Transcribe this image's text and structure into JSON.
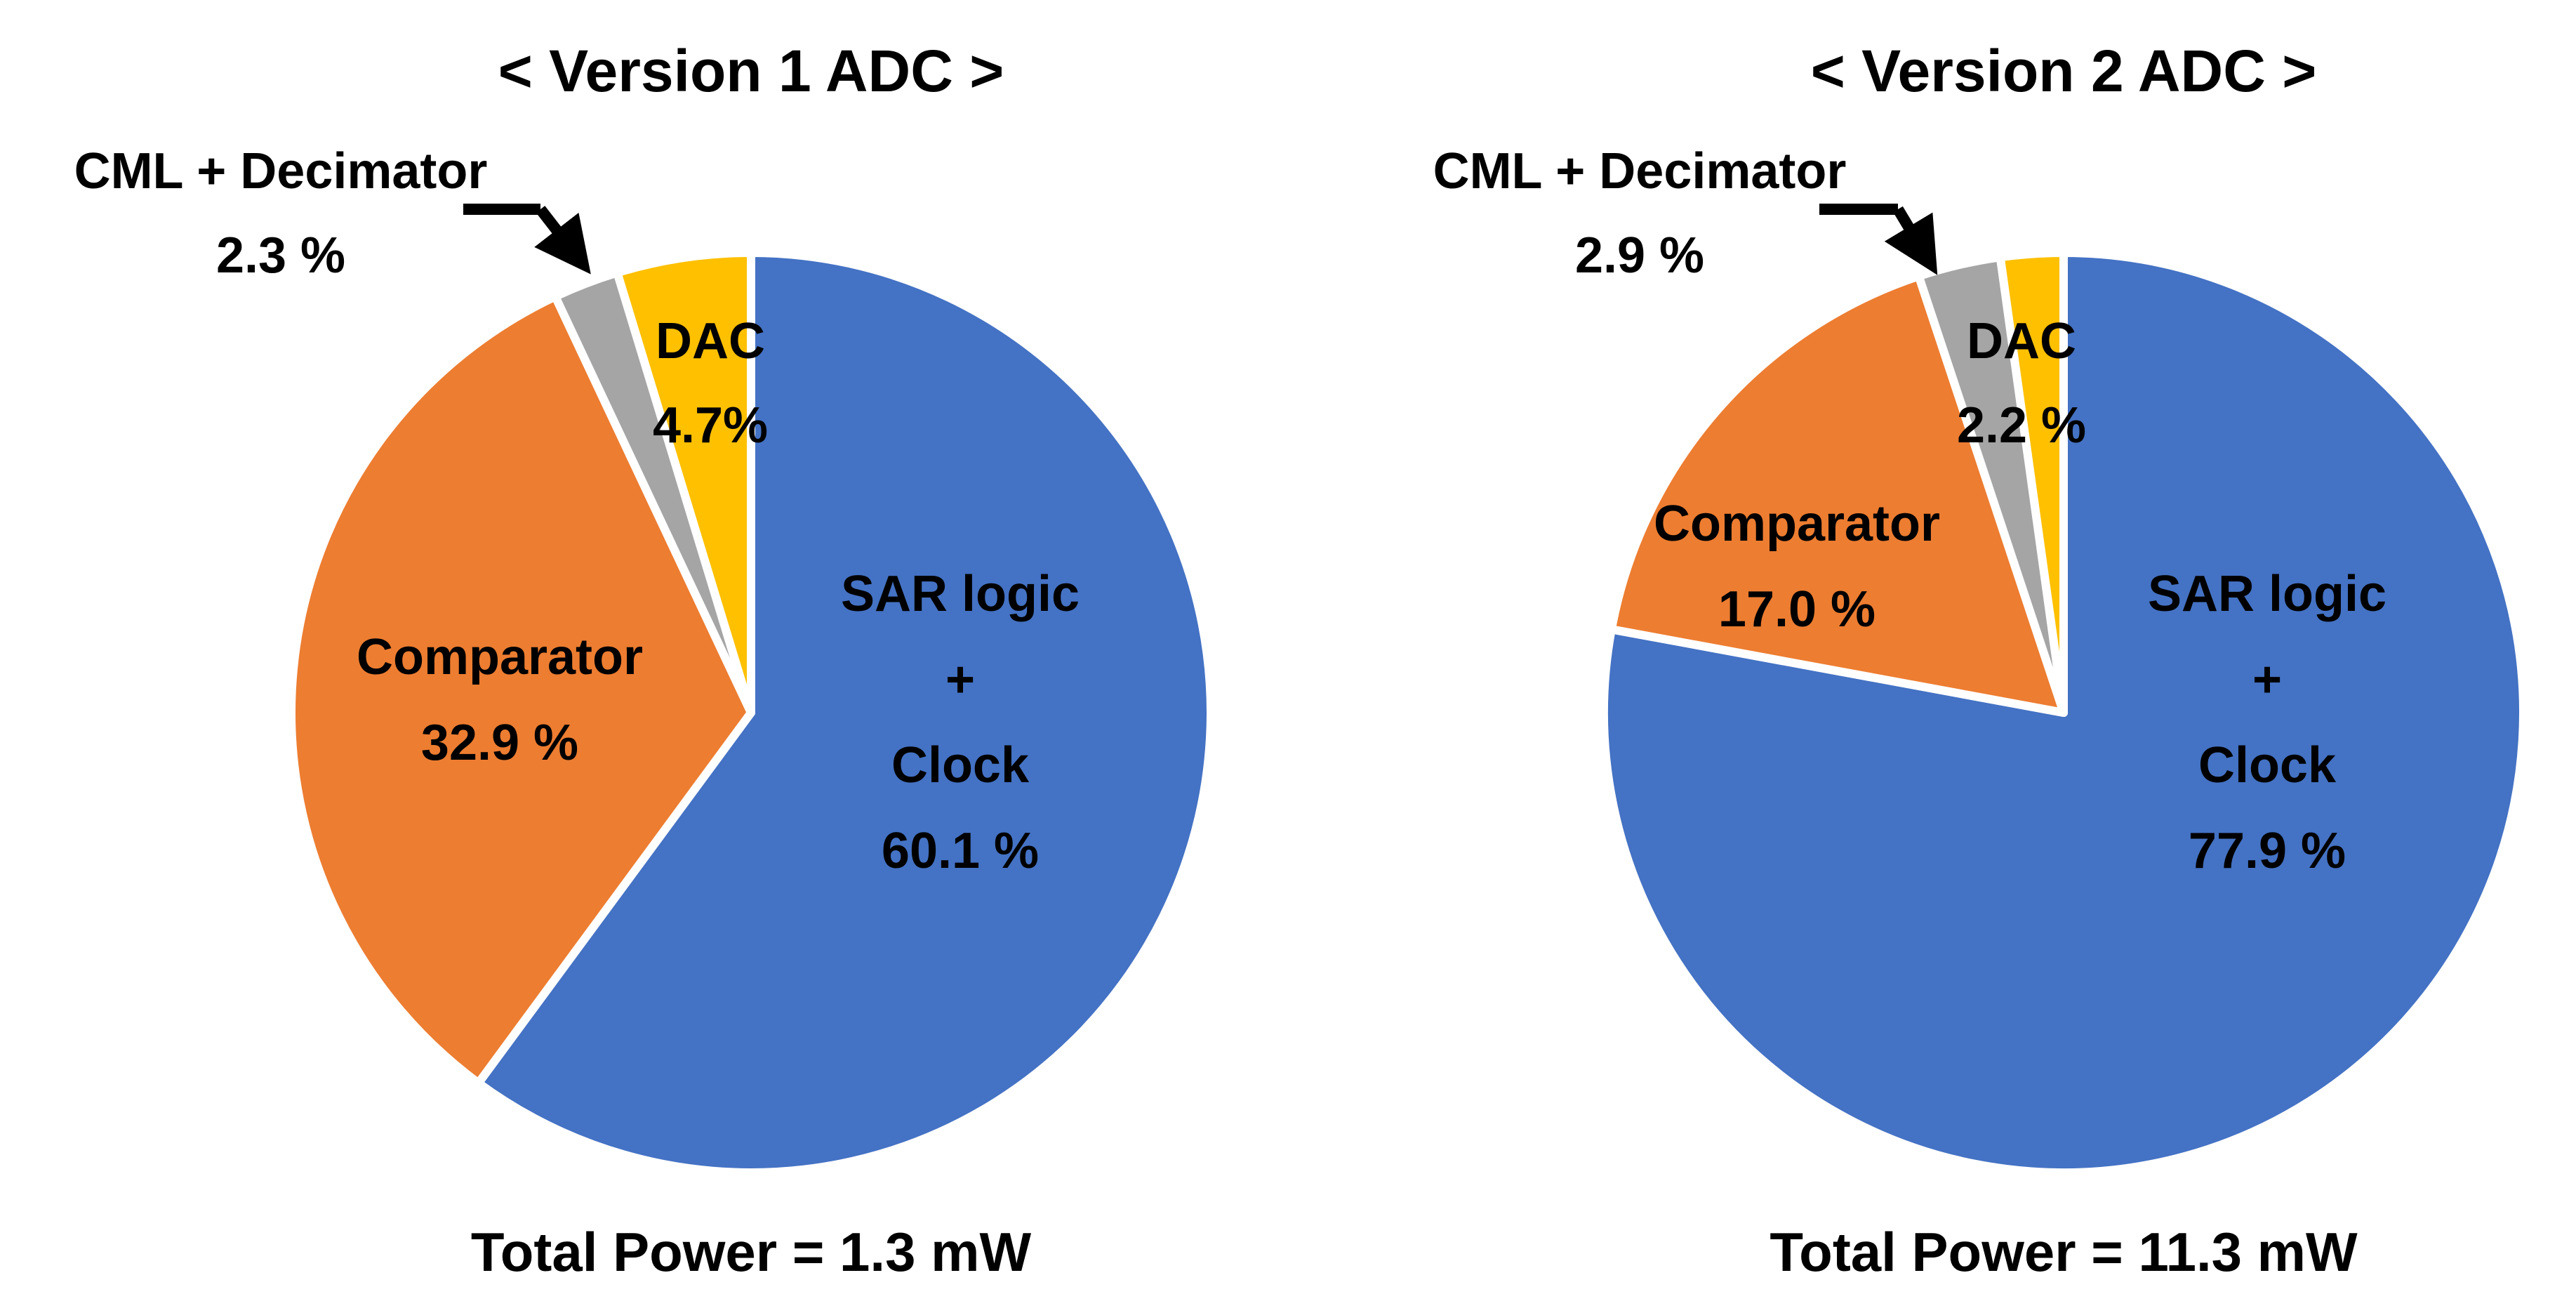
{
  "chart_data": [
    {
      "type": "pie",
      "title": "< Version 1 ADC >",
      "footer": "Total Power = 1.3 mW",
      "slices": [
        {
          "label_lines": [
            "SAR logic",
            "+",
            "Clock"
          ],
          "value_text": "60.1 %",
          "value": 60.1,
          "color": "#4472C4"
        },
        {
          "label_lines": [
            "Comparator"
          ],
          "value_text": "32.9 %",
          "value": 32.9,
          "color": "#ED7D31"
        },
        {
          "label_lines": [
            "CML + Decimator"
          ],
          "value_text": "2.3 %",
          "value": 2.3,
          "color": "#A5A5A5"
        },
        {
          "label_lines": [
            "DAC"
          ],
          "value_text": "4.7%",
          "value": 4.7,
          "color": "#FFC000"
        }
      ]
    },
    {
      "type": "pie",
      "title": "< Version 2 ADC >",
      "footer": "Total Power = 11.3 mW",
      "slices": [
        {
          "label_lines": [
            "SAR logic",
            "+",
            "Clock"
          ],
          "value_text": "77.9 %",
          "value": 77.9,
          "color": "#4472C4"
        },
        {
          "label_lines": [
            "Comparator"
          ],
          "value_text": "17.0 %",
          "value": 17.0,
          "color": "#ED7D31"
        },
        {
          "label_lines": [
            "CML + Decimator"
          ],
          "value_text": "2.9 %",
          "value": 2.9,
          "color": "#A5A5A5"
        },
        {
          "label_lines": [
            "DAC"
          ],
          "value_text": "2.2 %",
          "value": 2.2,
          "color": "#FFC000"
        }
      ]
    }
  ]
}
